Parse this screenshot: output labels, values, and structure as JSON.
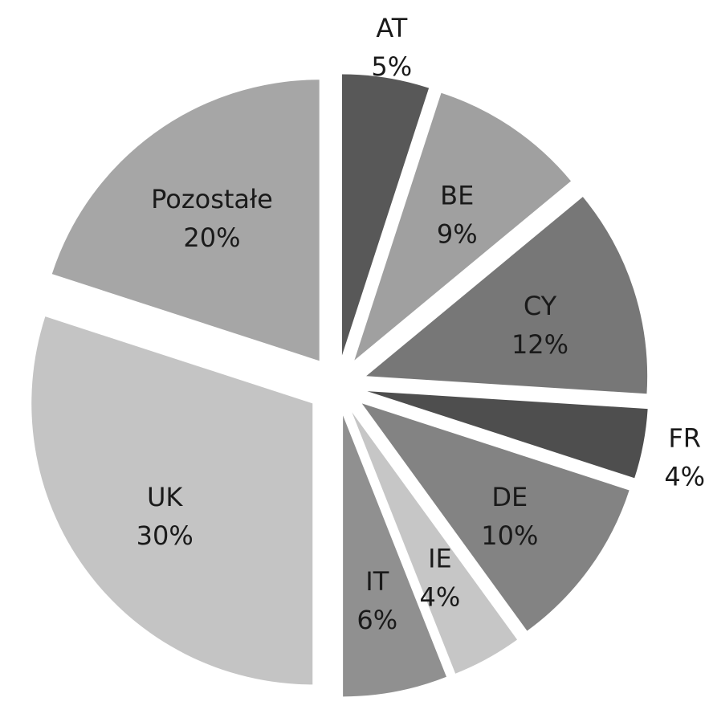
{
  "chart_data": {
    "type": "pie",
    "title": "",
    "exploded": true,
    "start_angle": "12 o'clock",
    "direction": "clockwise",
    "slices": [
      {
        "label": "AT",
        "value": 5,
        "value_label": "5%",
        "color": "#585858"
      },
      {
        "label": "BE",
        "value": 9,
        "value_label": "9%",
        "color": "#a0a0a0"
      },
      {
        "label": "CY",
        "value": 12,
        "value_label": "12%",
        "color": "#777777"
      },
      {
        "label": "FR",
        "value": 4,
        "value_label": "4%",
        "color": "#4e4e4e"
      },
      {
        "label": "DE",
        "value": 10,
        "value_label": "10%",
        "color": "#838383"
      },
      {
        "label": "IE",
        "value": 4,
        "value_label": "4%",
        "color": "#c6c6c6"
      },
      {
        "label": "IT",
        "value": 6,
        "value_label": "6%",
        "color": "#909090"
      },
      {
        "label": "UK",
        "value": 30,
        "value_label": "30%",
        "color": "#c4c4c4"
      },
      {
        "label": "Pozostałe",
        "value": 20,
        "value_label": "20%",
        "color": "#a6a6a6"
      }
    ]
  }
}
